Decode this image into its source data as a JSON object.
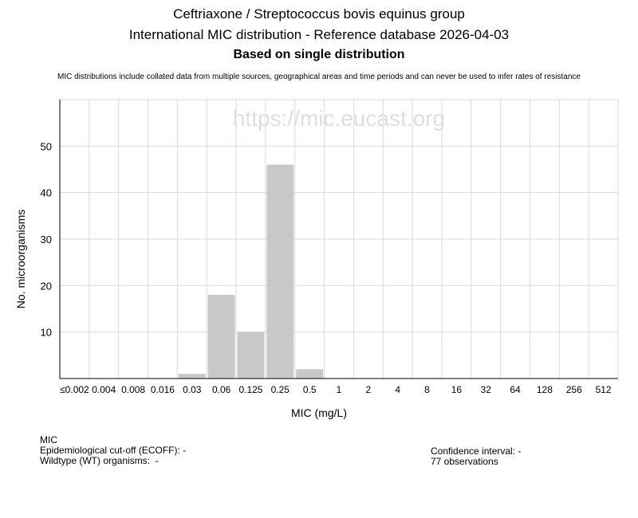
{
  "header": {
    "title": "Ceftriaxone / Streptococcus bovis equinus group",
    "subtitle": "International MIC distribution - Reference database 2026-04-03",
    "basis": "Based on single distribution",
    "disclaimer": "MIC distributions include collated data from multiple sources, geographical areas and time periods and can never be used to infer rates of resistance"
  },
  "chart_data": {
    "type": "bar",
    "categories": [
      "≤0.002",
      "0.004",
      "0.008",
      "0.016",
      "0.03",
      "0.06",
      "0.125",
      "0.25",
      "0.5",
      "1",
      "2",
      "4",
      "8",
      "16",
      "32",
      "64",
      "128",
      "256",
      "512"
    ],
    "values": [
      0,
      0,
      0,
      0,
      1,
      18,
      10,
      46,
      2,
      0,
      0,
      0,
      0,
      0,
      0,
      0,
      0,
      0,
      0
    ],
    "xlabel": "MIC (mg/L)",
    "ylabel": "No. microorganisms",
    "ylim": [
      0,
      60
    ],
    "yticks": [
      10,
      20,
      30,
      40,
      50
    ],
    "grid": true,
    "bar_color": "#c8c8c8",
    "watermark": "https://mic.eucast.org"
  },
  "footer": {
    "mic_label": "MIC",
    "ecoff": "Epidemiological cut-off (ECOFF): -",
    "wildtype": "Wildtype (WT) organisms:  -",
    "confidence": "Confidence interval: -",
    "observations": "77 observations"
  }
}
